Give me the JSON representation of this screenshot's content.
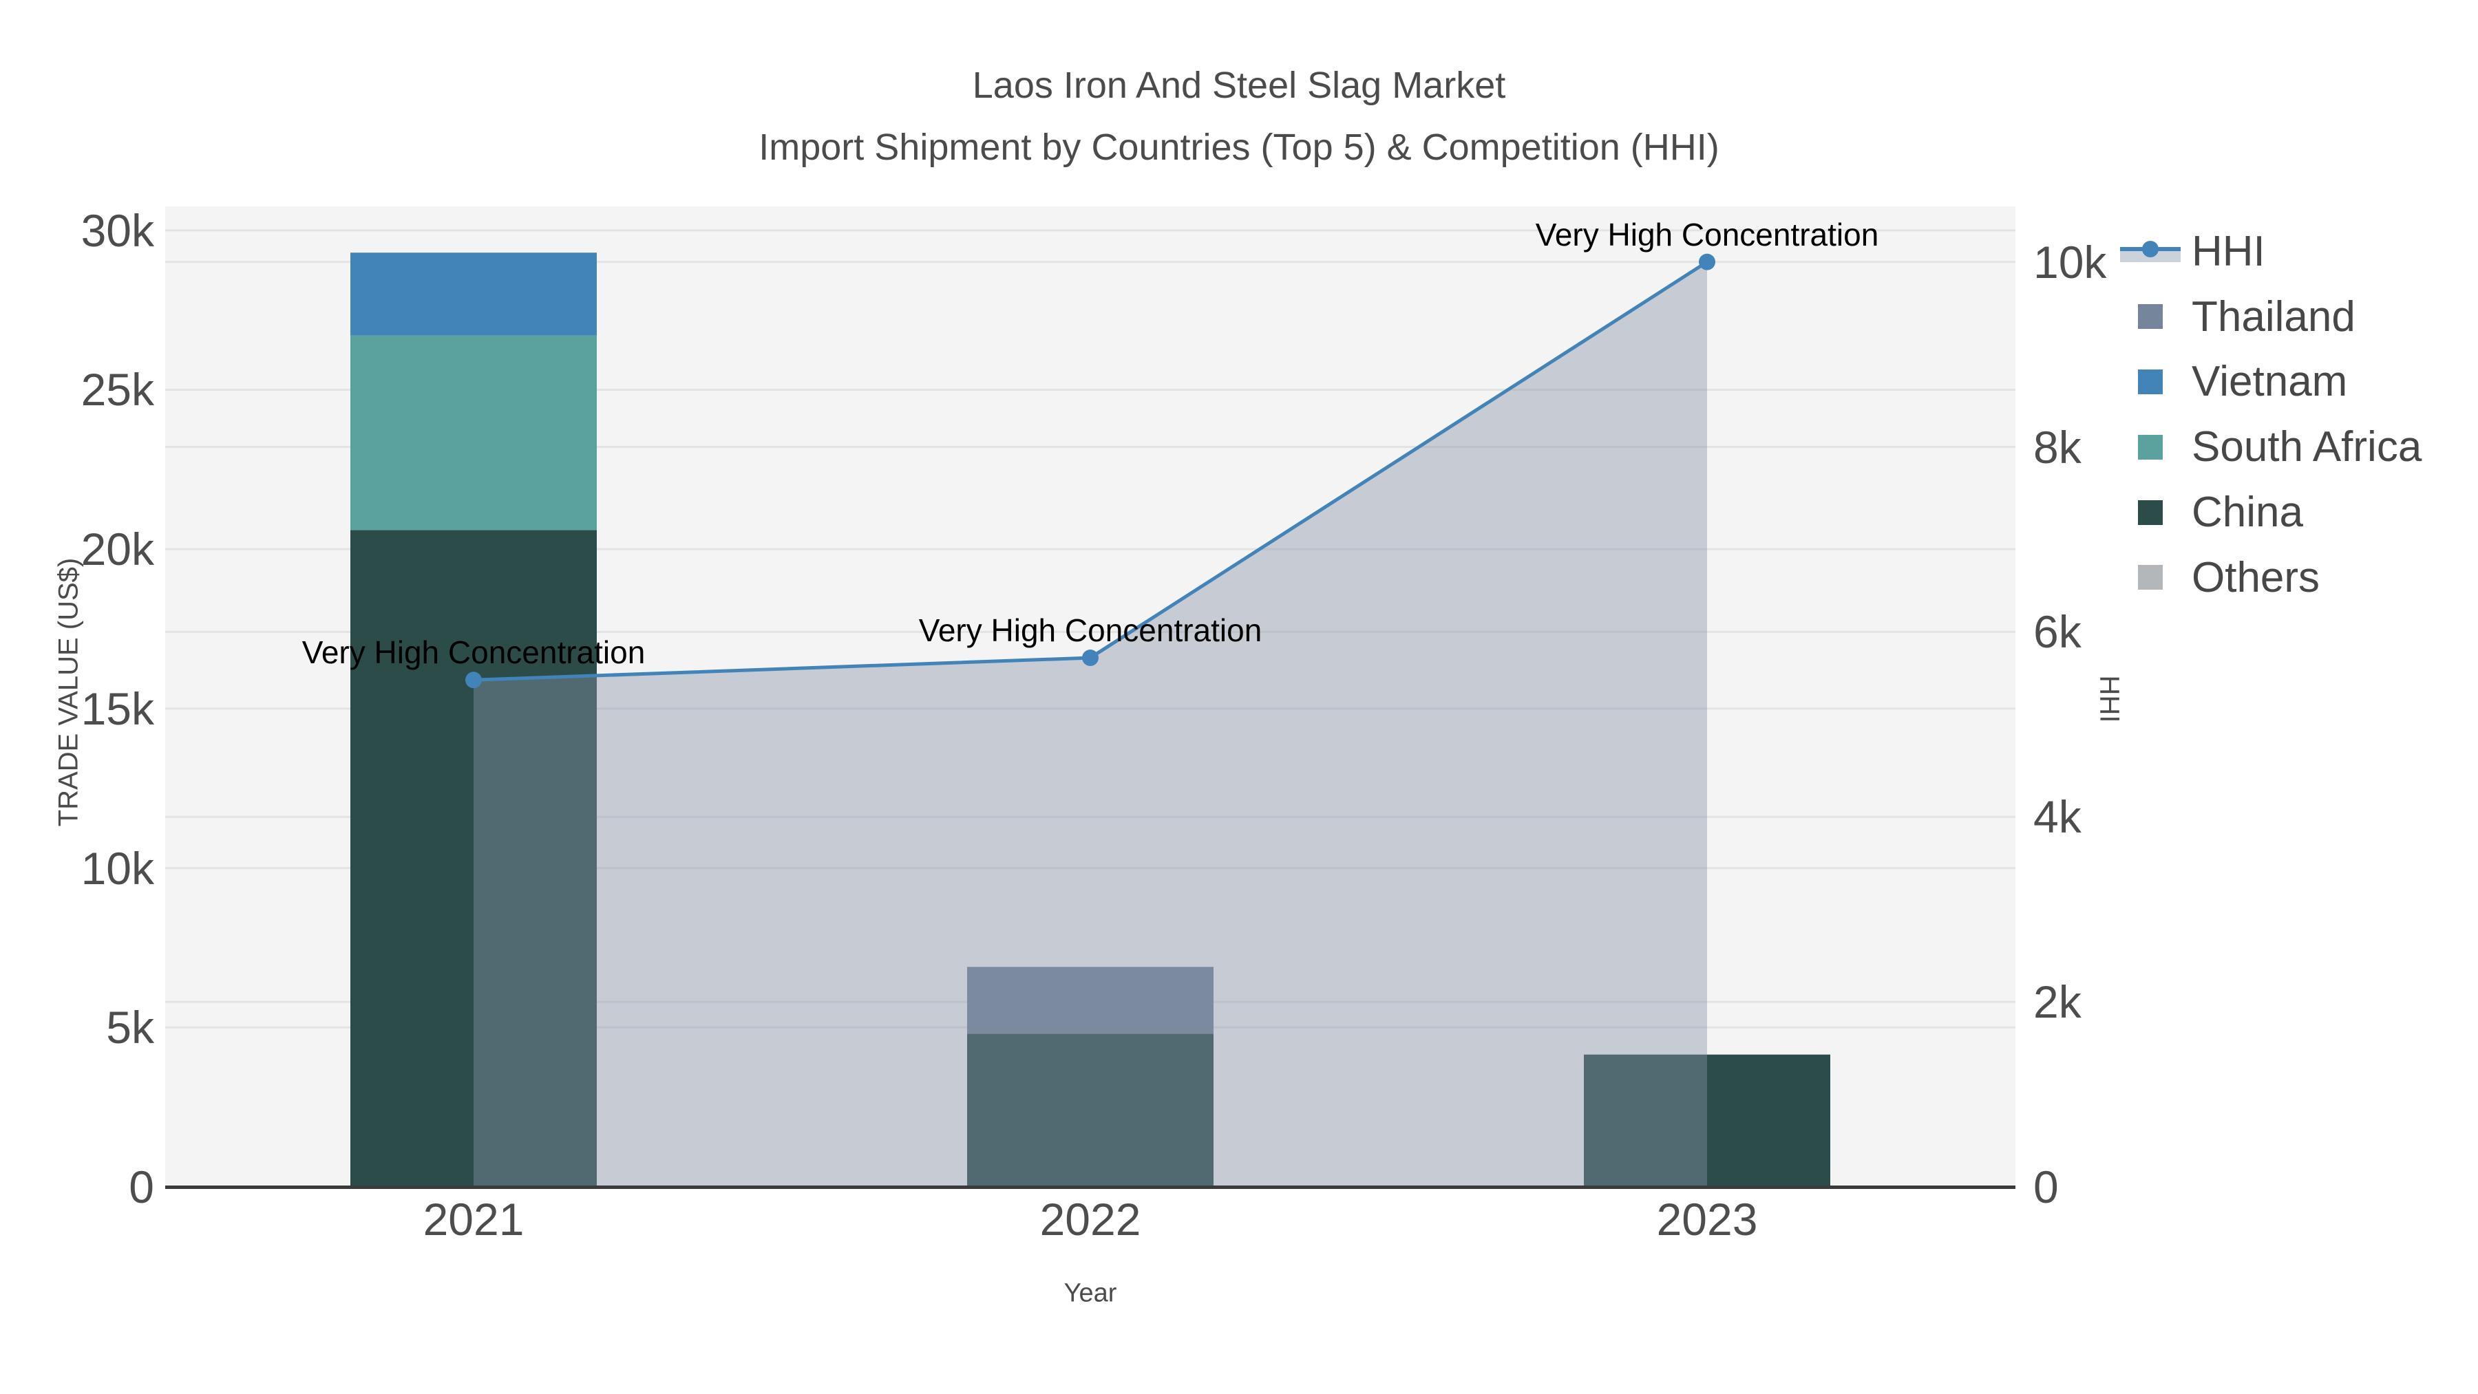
{
  "title": {
    "line1": "Laos Iron And Steel Slag Market",
    "line2": "Import Shipment by Countries (Top 5) & Competition (HHI)"
  },
  "legend": {
    "items": [
      {
        "id": "hhi",
        "label": "HHI",
        "type": "line",
        "color": "#4284b9",
        "fill": "#ccd2db"
      },
      {
        "id": "thailand",
        "label": "Thailand",
        "type": "square",
        "color": "#75859b"
      },
      {
        "id": "vietnam",
        "label": "Vietnam",
        "type": "square",
        "color": "#4384b8"
      },
      {
        "id": "south-africa",
        "label": "South Africa",
        "type": "square",
        "color": "#5ba19e"
      },
      {
        "id": "china",
        "label": "China",
        "type": "square",
        "color": "#2c4c49"
      },
      {
        "id": "others",
        "label": "Others",
        "type": "square",
        "color": "#b3b7ba"
      }
    ]
  },
  "chart_data": {
    "type": "bar",
    "subtype": "stacked-bars-with-line",
    "title": "Laos Iron And Steel Slag Market Import Shipment by Countries (Top 5) & Competition (HHI)",
    "categories": [
      "2021",
      "2022",
      "2023"
    ],
    "axes": {
      "x": {
        "title": "Year"
      },
      "y_left": {
        "title": "TRADE VALUE (US$)",
        "range": [
          0,
          30750
        ],
        "ticks": [
          {
            "value": 0,
            "label": "0"
          },
          {
            "value": 5000,
            "label": "5k"
          },
          {
            "value": 10000,
            "label": "10k"
          },
          {
            "value": 15000,
            "label": "15k"
          },
          {
            "value": 20000,
            "label": "20k"
          },
          {
            "value": 25000,
            "label": "25k"
          },
          {
            "value": 30000,
            "label": "30k"
          }
        ]
      },
      "y_right": {
        "title": "HHI",
        "range": [
          0,
          10600
        ],
        "ticks": [
          {
            "value": 0,
            "label": "0"
          },
          {
            "value": 2000,
            "label": "2k"
          },
          {
            "value": 4000,
            "label": "4k"
          },
          {
            "value": 6000,
            "label": "6k"
          },
          {
            "value": 8000,
            "label": "8k"
          },
          {
            "value": 10000,
            "label": "10k"
          }
        ]
      }
    },
    "bar_series_bottom_to_top": [
      {
        "name": "China",
        "color": "#2c4c49",
        "values": [
          20600,
          4800,
          4150
        ]
      },
      {
        "name": "South Africa",
        "color": "#5ba19e",
        "values": [
          6100,
          0,
          0
        ]
      },
      {
        "name": "Vietnam",
        "color": "#4384b8",
        "values": [
          2600,
          0,
          0
        ]
      },
      {
        "name": "Thailand",
        "color": "#75859b",
        "values": [
          0,
          2100,
          0
        ]
      },
      {
        "name": "Others",
        "color": "#b3b7ba",
        "values": [
          0,
          0,
          0
        ]
      }
    ],
    "line_series": {
      "name": "HHI",
      "axis": "right",
      "color": "#4284b9",
      "area_fill": "rgba(134,145,166,0.42)",
      "values": [
        5480,
        5720,
        10000
      ]
    },
    "annotations": [
      {
        "text": "Very High Concentration",
        "category_index": 0,
        "value": 5480
      },
      {
        "text": "Very High Concentration",
        "category_index": 1,
        "value": 5720
      },
      {
        "text": "Very High Concentration",
        "category_index": 2,
        "value": 10000
      }
    ],
    "layout_hints": {
      "plot_bg": "#f4f4f4",
      "gridline_color": "#e3e3e3",
      "zeroline_color": "#3b3b3b",
      "grid_on": true,
      "legend_position": "right"
    }
  }
}
